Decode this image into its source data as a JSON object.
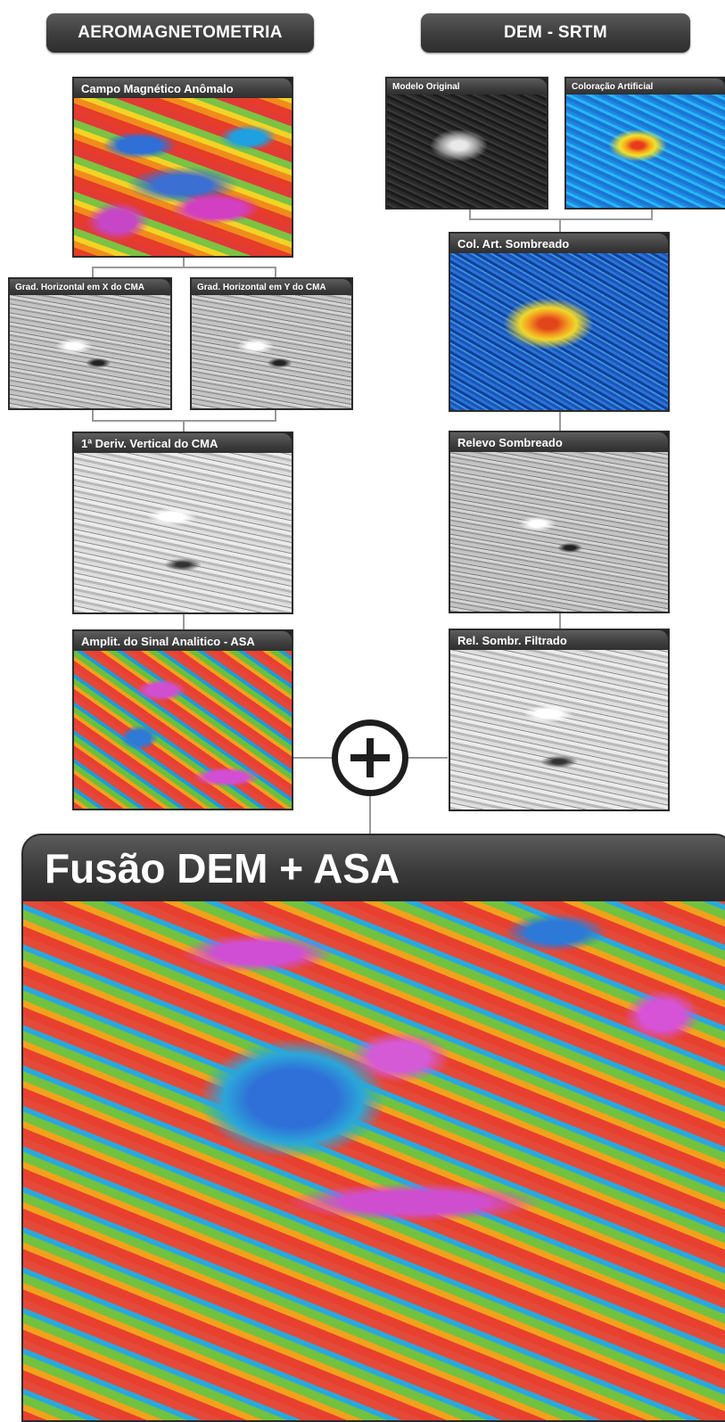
{
  "headers": {
    "left": "AEROMAGNETOMETRIA",
    "right": "DEM - SRTM"
  },
  "left_panels": {
    "campo": "Campo Magnético Anômalo",
    "grad_x": "Grad. Horizontal em X do CMA",
    "grad_y": "Grad. Horizontal em Y do CMA",
    "deriv": "1ª Deriv. Vertical do CMA",
    "asa": "Amplit. do Sinal Analitico - ASA"
  },
  "right_panels": {
    "original": "Modelo Original",
    "coloracao": "Coloração Artificial",
    "col_sombreado": "Col. Art. Sombreado",
    "relevo": "Relevo Sombreado",
    "filtrado": "Rel. Sombr. Filtrado"
  },
  "fusion": {
    "title": "Fusão DEM + ASA"
  },
  "icons": {
    "combine": "plus-circle-icon"
  }
}
